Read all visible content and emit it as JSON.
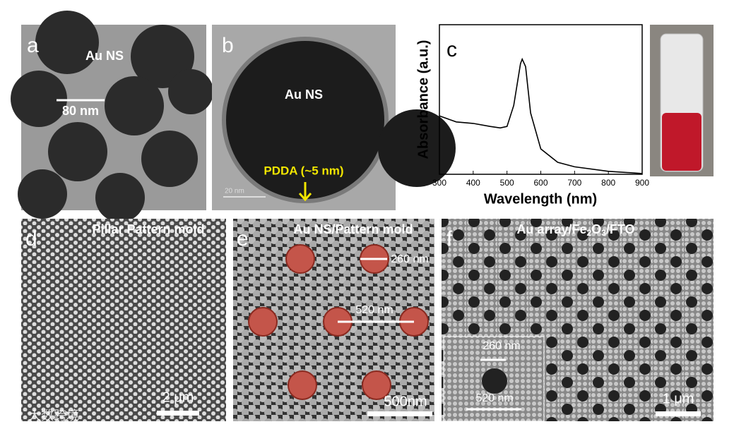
{
  "panels": {
    "a": {
      "label": "a",
      "name": "Au NS",
      "scale": "80 nm"
    },
    "b": {
      "label": "b",
      "name": "Au NS",
      "shell": "PDDA (~5 nm)",
      "scale": "20 nm"
    },
    "d": {
      "label": "d",
      "title": "Pillar Pattern mold",
      "scale": "2 μm"
    },
    "e": {
      "label": "e",
      "title": "Au NS/Pattern mold",
      "spacing": "260 nm",
      "pitch": "520 nm",
      "scale": "500nm"
    },
    "f": {
      "label": "f",
      "title_parts": [
        "Au array/Fe",
        "2",
        "O",
        "3",
        "/FTO"
      ],
      "inset_spacing": "260 nm",
      "inset_pitch": "520 nm",
      "scale": "1 μm"
    }
  },
  "watermark": "大数跨境",
  "chart_data": {
    "type": "line",
    "label": "c",
    "xlabel": "Wavelength (nm)",
    "ylabel": "Absorbance (a.u.)",
    "x": [
      300,
      350,
      400,
      450,
      480,
      500,
      520,
      540,
      545,
      555,
      570,
      600,
      650,
      700,
      800,
      900
    ],
    "values": [
      0.39,
      0.35,
      0.34,
      0.32,
      0.31,
      0.32,
      0.46,
      0.74,
      0.77,
      0.72,
      0.41,
      0.17,
      0.08,
      0.05,
      0.02,
      0.005
    ],
    "color": "#000000",
    "xlim": [
      300,
      900
    ],
    "ylim": [
      0,
      1
    ],
    "xticks": [
      300,
      400,
      500,
      600,
      700,
      800,
      900
    ]
  }
}
